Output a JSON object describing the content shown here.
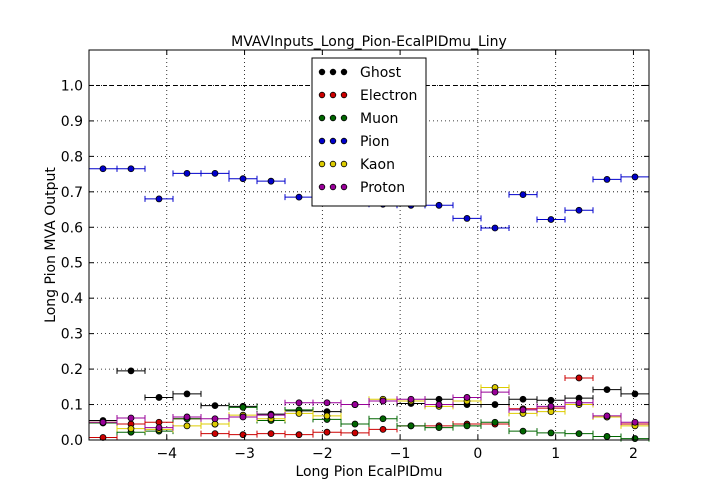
{
  "chart_data": {
    "type": "scatter",
    "title": "MVAVInputs_Long_Pion-EcalPIDmu_Liny",
    "xlabel": "Long Pion EcalPIDmu",
    "ylabel": "Long Pion MVA Output",
    "xlim": [
      -5.0,
      2.2
    ],
    "ylim": [
      0.0,
      1.1
    ],
    "grid": true,
    "legend_position": "top-center",
    "reference_line": 1.0,
    "xticks": [
      -4,
      -3,
      -2,
      -1,
      0,
      1,
      2
    ],
    "xtick_labels": [
      "−4",
      "−3",
      "−2",
      "−1",
      "0",
      "1",
      "2"
    ],
    "yticks": [
      0.0,
      0.1,
      0.2,
      0.3,
      0.4,
      0.5,
      0.6,
      0.7,
      0.8,
      0.9,
      1.0
    ],
    "ytick_labels": [
      "0.0",
      "0.1",
      "0.2",
      "0.3",
      "0.4",
      "0.5",
      "0.6",
      "0.7",
      "0.8",
      "0.9",
      "1.0"
    ],
    "bin_width": 0.36,
    "x": [
      -4.82,
      -4.46,
      -4.1,
      -3.74,
      -3.38,
      -3.02,
      -2.66,
      -2.3,
      -1.94,
      -1.58,
      -1.22,
      -0.86,
      -0.5,
      -0.14,
      0.22,
      0.58,
      0.94,
      1.3,
      1.66,
      2.02
    ],
    "series": [
      {
        "name": "Ghost",
        "color": "#000000",
        "values": [
          0.055,
          0.195,
          0.12,
          0.13,
          0.097,
          0.095,
          0.073,
          0.082,
          0.08,
          0.1,
          0.11,
          0.103,
          0.115,
          0.1,
          0.1,
          0.115,
          0.112,
          0.118,
          0.142,
          0.13
        ]
      },
      {
        "name": "Electron",
        "color": "#cc0000",
        "values": [
          0.007,
          0.045,
          0.05,
          0.06,
          0.018,
          0.015,
          0.018,
          0.015,
          0.022,
          0.02,
          0.03,
          0.04,
          0.04,
          0.045,
          0.045,
          0.088,
          0.09,
          0.175,
          0.065,
          0.045
        ]
      },
      {
        "name": "Muon",
        "color": "#006600",
        "values": [
          0.048,
          0.022,
          0.025,
          0.06,
          0.045,
          0.092,
          0.055,
          0.085,
          0.058,
          0.045,
          0.06,
          0.04,
          0.035,
          0.04,
          0.05,
          0.025,
          0.02,
          0.018,
          0.01,
          0.004
        ]
      },
      {
        "name": "Pion",
        "color": "#0000cc",
        "values": [
          0.765,
          0.765,
          0.68,
          0.752,
          0.752,
          0.737,
          0.73,
          0.685,
          0.682,
          0.675,
          0.665,
          0.662,
          0.662,
          0.625,
          0.598,
          0.692,
          0.622,
          0.648,
          0.735,
          0.742
        ]
      },
      {
        "name": "Kaon",
        "color": "#ddcc00",
        "values": [
          0.05,
          0.032,
          0.03,
          0.04,
          0.045,
          0.07,
          0.06,
          0.075,
          0.068,
          0.1,
          0.115,
          0.11,
          0.095,
          0.11,
          0.148,
          0.075,
          0.08,
          0.1,
          0.065,
          0.04
        ]
      },
      {
        "name": "Proton",
        "color": "#990099",
        "values": [
          0.05,
          0.062,
          0.035,
          0.065,
          0.06,
          0.065,
          0.07,
          0.105,
          0.105,
          0.1,
          0.11,
          0.115,
          0.1,
          0.12,
          0.135,
          0.085,
          0.095,
          0.105,
          0.068,
          0.05
        ]
      }
    ]
  }
}
